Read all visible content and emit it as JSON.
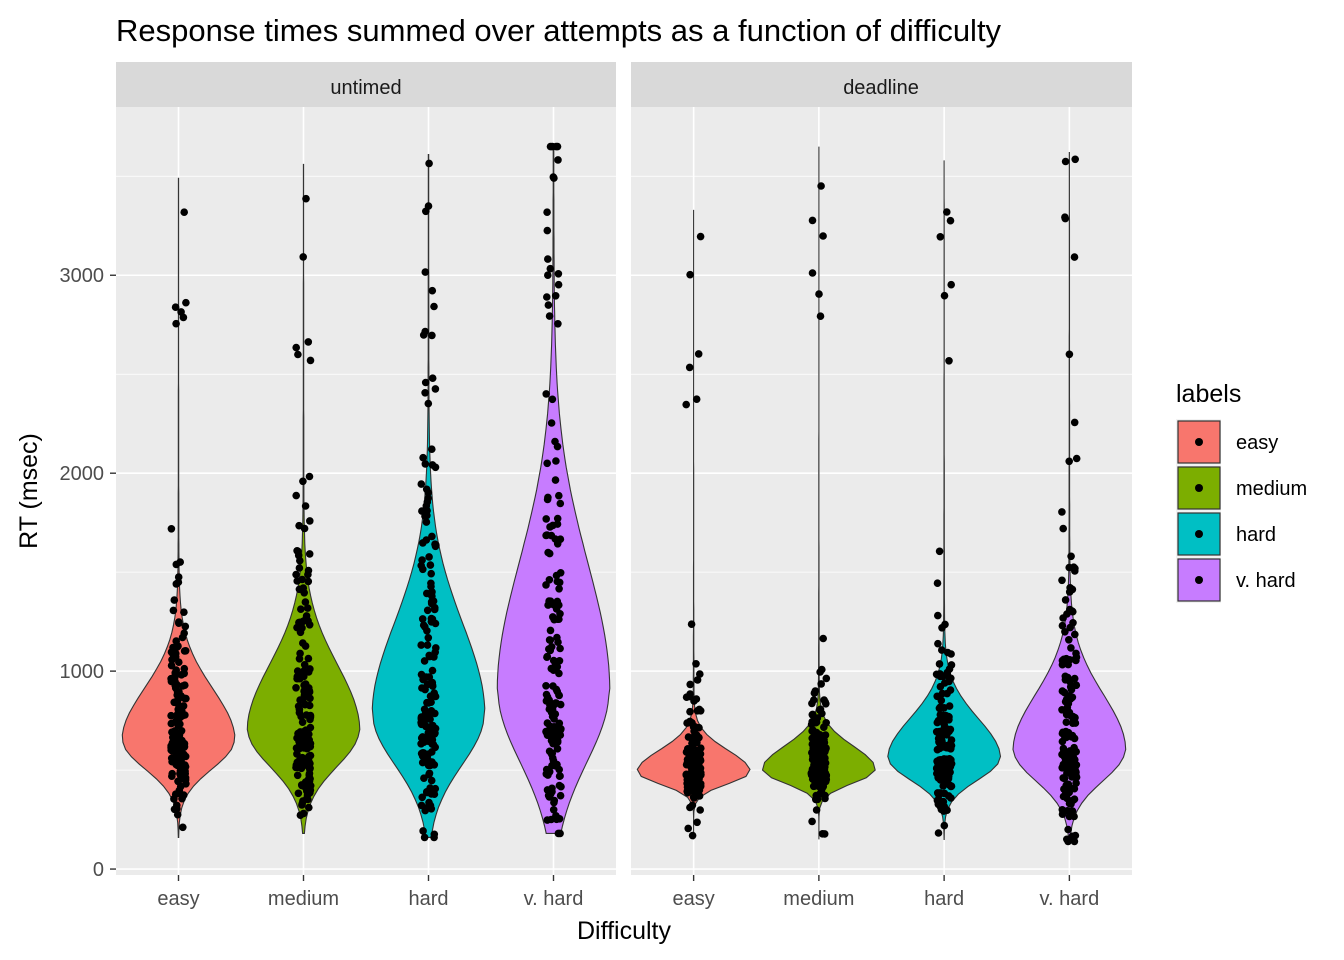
{
  "chart_data": {
    "type": "violin",
    "title": "Response times summed over attempts as a function of difficulty",
    "xlabel": "Difficulty",
    "ylabel": "RT (msec)",
    "categories": [
      "easy",
      "medium",
      "hard",
      "v. hard"
    ],
    "y_ticks": [
      "0",
      "1000",
      "2000",
      "3000"
    ],
    "ylim": [
      -30,
      3850
    ],
    "grid": true,
    "legend": {
      "title": "labels",
      "position": "right",
      "entries": [
        "easy",
        "medium",
        "hard",
        "v. hard"
      ]
    },
    "colors": {
      "easy": "#F8766D",
      "medium": "#7CAE00",
      "hard": "#00BFC4",
      "v. hard": "#C77CFF",
      "panel_bg": "#EBEBEB",
      "strip_bg": "#D9D9D9",
      "grid": "#FFFFFF",
      "points": "#000000"
    },
    "panels": [
      {
        "label": "untimed",
        "groups": [
          {
            "category": "easy",
            "min": 160,
            "max": 3490,
            "mode": 650,
            "spread": 260,
            "width": 0.45
          },
          {
            "category": "medium",
            "min": 180,
            "max": 3560,
            "mode": 700,
            "spread": 330,
            "width": 0.45
          },
          {
            "category": "hard",
            "min": 160,
            "max": 3610,
            "mode": 780,
            "spread": 460,
            "width": 0.45
          },
          {
            "category": "v. hard",
            "min": 180,
            "max": 3650,
            "mode": 900,
            "spread": 650,
            "width": 0.45
          }
        ]
      },
      {
        "label": "deadline",
        "groups": [
          {
            "category": "easy",
            "min": 150,
            "max": 3330,
            "mode": 490,
            "spread": 110,
            "width": 0.45
          },
          {
            "category": "medium",
            "min": 150,
            "max": 3650,
            "mode": 500,
            "spread": 120,
            "width": 0.45
          },
          {
            "category": "hard",
            "min": 150,
            "max": 3580,
            "mode": 560,
            "spread": 200,
            "width": 0.45
          },
          {
            "category": "v. hard",
            "min": 140,
            "max": 3620,
            "mode": 600,
            "spread": 280,
            "width": 0.45
          }
        ]
      }
    ]
  }
}
